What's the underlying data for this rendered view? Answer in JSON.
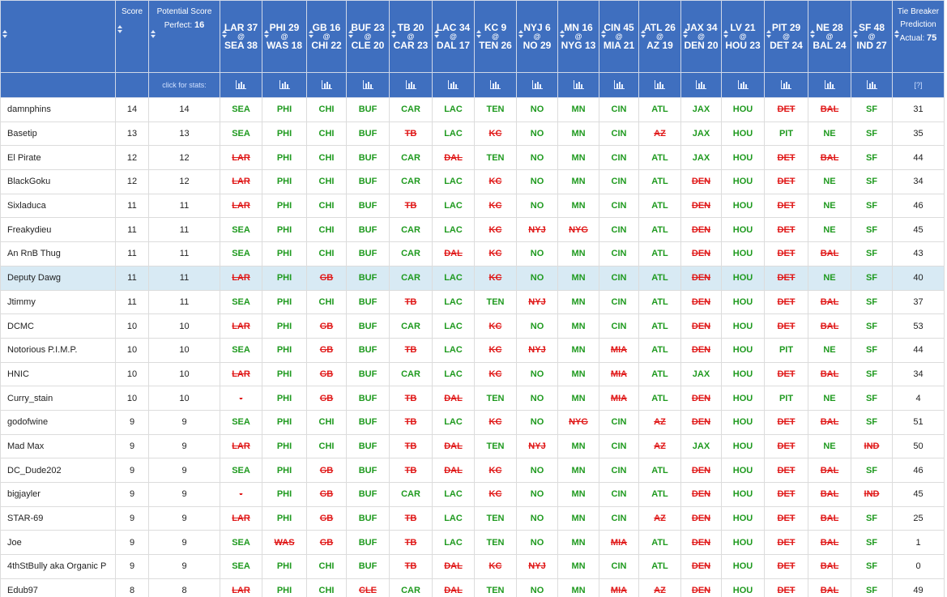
{
  "table": {
    "header": {
      "score": "Score",
      "potential": {
        "label": "Potential Score",
        "perfect_label": "Perfect:",
        "perfect": 16
      },
      "tiebreaker": {
        "label": "Tie Breaker Prediction",
        "actual_label": "Actual:",
        "actual": 75
      },
      "stats_hint": "click for stats:",
      "help": "[?]"
    },
    "games": [
      {
        "away": "LAR",
        "away_score": 37,
        "home": "SEA",
        "home_score": 38
      },
      {
        "away": "PHI",
        "away_score": 29,
        "home": "WAS",
        "home_score": 18
      },
      {
        "away": "GB",
        "away_score": 16,
        "home": "CHI",
        "home_score": 22
      },
      {
        "away": "BUF",
        "away_score": 23,
        "home": "CLE",
        "home_score": 20
      },
      {
        "away": "TB",
        "away_score": 20,
        "home": "CAR",
        "home_score": 23
      },
      {
        "away": "LAC",
        "away_score": 34,
        "home": "DAL",
        "home_score": 17
      },
      {
        "away": "KC",
        "away_score": 9,
        "home": "TEN",
        "home_score": 26
      },
      {
        "away": "NYJ",
        "away_score": 6,
        "home": "NO",
        "home_score": 29
      },
      {
        "away": "MN",
        "away_score": 16,
        "home": "NYG",
        "home_score": 13
      },
      {
        "away": "CIN",
        "away_score": 45,
        "home": "MIA",
        "home_score": 21
      },
      {
        "away": "ATL",
        "away_score": 26,
        "home": "AZ",
        "home_score": 19
      },
      {
        "away": "JAX",
        "away_score": 34,
        "home": "DEN",
        "home_score": 20
      },
      {
        "away": "LV",
        "away_score": 21,
        "home": "HOU",
        "home_score": 23
      },
      {
        "away": "PIT",
        "away_score": 29,
        "home": "DET",
        "home_score": 24
      },
      {
        "away": "NE",
        "away_score": 28,
        "home": "BAL",
        "home_score": 24
      },
      {
        "away": "SF",
        "away_score": 48,
        "home": "IND",
        "home_score": 27
      }
    ],
    "rows": [
      {
        "name": "damnphins",
        "score": 14,
        "potential": 14,
        "picks": [
          "SEA",
          "PHI",
          "CHI",
          "BUF",
          "CAR",
          "LAC",
          "TEN",
          "NO",
          "MN",
          "CIN",
          "ATL",
          "JAX",
          "HOU",
          "DET",
          "BAL",
          "SF"
        ],
        "tiebreaker": 31
      },
      {
        "name": "Basetip",
        "score": 13,
        "potential": 13,
        "picks": [
          "SEA",
          "PHI",
          "CHI",
          "BUF",
          "TB",
          "LAC",
          "KC",
          "NO",
          "MN",
          "CIN",
          "AZ",
          "JAX",
          "HOU",
          "PIT",
          "NE",
          "SF"
        ],
        "tiebreaker": 35
      },
      {
        "name": "El Pirate",
        "score": 12,
        "potential": 12,
        "picks": [
          "LAR",
          "PHI",
          "CHI",
          "BUF",
          "CAR",
          "DAL",
          "TEN",
          "NO",
          "MN",
          "CIN",
          "ATL",
          "JAX",
          "HOU",
          "DET",
          "BAL",
          "SF"
        ],
        "tiebreaker": 44
      },
      {
        "name": "BlackGoku",
        "score": 12,
        "potential": 12,
        "picks": [
          "LAR",
          "PHI",
          "CHI",
          "BUF",
          "CAR",
          "LAC",
          "KC",
          "NO",
          "MN",
          "CIN",
          "ATL",
          "DEN",
          "HOU",
          "DET",
          "NE",
          "SF"
        ],
        "tiebreaker": 34
      },
      {
        "name": "Sixladuca",
        "score": 11,
        "potential": 11,
        "picks": [
          "LAR",
          "PHI",
          "CHI",
          "BUF",
          "TB",
          "LAC",
          "KC",
          "NO",
          "MN",
          "CIN",
          "ATL",
          "DEN",
          "HOU",
          "DET",
          "NE",
          "SF"
        ],
        "tiebreaker": 46
      },
      {
        "name": "Freakydieu",
        "score": 11,
        "potential": 11,
        "picks": [
          "SEA",
          "PHI",
          "CHI",
          "BUF",
          "CAR",
          "LAC",
          "KC",
          "NYJ",
          "NYG",
          "CIN",
          "ATL",
          "DEN",
          "HOU",
          "DET",
          "NE",
          "SF"
        ],
        "tiebreaker": 45
      },
      {
        "name": "An RnB Thug",
        "score": 11,
        "potential": 11,
        "picks": [
          "SEA",
          "PHI",
          "CHI",
          "BUF",
          "CAR",
          "DAL",
          "KC",
          "NO",
          "MN",
          "CIN",
          "ATL",
          "DEN",
          "HOU",
          "DET",
          "BAL",
          "SF"
        ],
        "tiebreaker": 43
      },
      {
        "name": "Deputy Dawg",
        "score": 11,
        "potential": 11,
        "picks": [
          "LAR",
          "PHI",
          "GB",
          "BUF",
          "CAR",
          "LAC",
          "KC",
          "NO",
          "MN",
          "CIN",
          "ATL",
          "DEN",
          "HOU",
          "DET",
          "NE",
          "SF"
        ],
        "tiebreaker": 40,
        "highlighted": true
      },
      {
        "name": "Jtimmy",
        "score": 11,
        "potential": 11,
        "picks": [
          "SEA",
          "PHI",
          "CHI",
          "BUF",
          "TB",
          "LAC",
          "TEN",
          "NYJ",
          "MN",
          "CIN",
          "ATL",
          "DEN",
          "HOU",
          "DET",
          "BAL",
          "SF"
        ],
        "tiebreaker": 37
      },
      {
        "name": "DCMC",
        "score": 10,
        "potential": 10,
        "picks": [
          "LAR",
          "PHI",
          "GB",
          "BUF",
          "CAR",
          "LAC",
          "KC",
          "NO",
          "MN",
          "CIN",
          "ATL",
          "DEN",
          "HOU",
          "DET",
          "BAL",
          "SF"
        ],
        "tiebreaker": 53
      },
      {
        "name": "Notorious P.I.M.P.",
        "score": 10,
        "potential": 10,
        "picks": [
          "SEA",
          "PHI",
          "GB",
          "BUF",
          "TB",
          "LAC",
          "KC",
          "NYJ",
          "MN",
          "MIA",
          "ATL",
          "DEN",
          "HOU",
          "PIT",
          "NE",
          "SF"
        ],
        "tiebreaker": 44
      },
      {
        "name": "HNIC",
        "score": 10,
        "potential": 10,
        "picks": [
          "LAR",
          "PHI",
          "GB",
          "BUF",
          "CAR",
          "LAC",
          "KC",
          "NO",
          "MN",
          "MIA",
          "ATL",
          "JAX",
          "HOU",
          "DET",
          "BAL",
          "SF"
        ],
        "tiebreaker": 34
      },
      {
        "name": "Curry_stain",
        "score": 10,
        "potential": 10,
        "picks": [
          "-",
          "PHI",
          "GB",
          "BUF",
          "TB",
          "DAL",
          "TEN",
          "NO",
          "MN",
          "MIA",
          "ATL",
          "DEN",
          "HOU",
          "PIT",
          "NE",
          "SF"
        ],
        "tiebreaker": 4
      },
      {
        "name": "godofwine",
        "score": 9,
        "potential": 9,
        "picks": [
          "SEA",
          "PHI",
          "CHI",
          "BUF",
          "TB",
          "LAC",
          "KC",
          "NO",
          "NYG",
          "CIN",
          "AZ",
          "DEN",
          "HOU",
          "DET",
          "BAL",
          "SF"
        ],
        "tiebreaker": 51
      },
      {
        "name": "Mad Max",
        "score": 9,
        "potential": 9,
        "picks": [
          "LAR",
          "PHI",
          "CHI",
          "BUF",
          "TB",
          "DAL",
          "TEN",
          "NYJ",
          "MN",
          "CIN",
          "AZ",
          "JAX",
          "HOU",
          "DET",
          "NE",
          "IND"
        ],
        "tiebreaker": 50
      },
      {
        "name": "DC_Dude202",
        "score": 9,
        "potential": 9,
        "picks": [
          "SEA",
          "PHI",
          "GB",
          "BUF",
          "TB",
          "DAL",
          "KC",
          "NO",
          "MN",
          "CIN",
          "ATL",
          "DEN",
          "HOU",
          "DET",
          "BAL",
          "SF"
        ],
        "tiebreaker": 46
      },
      {
        "name": "bigjayler",
        "score": 9,
        "potential": 9,
        "picks": [
          "-",
          "PHI",
          "GB",
          "BUF",
          "CAR",
          "LAC",
          "KC",
          "NO",
          "MN",
          "CIN",
          "ATL",
          "DEN",
          "HOU",
          "DET",
          "BAL",
          "IND"
        ],
        "tiebreaker": 45
      },
      {
        "name": "STAR-69",
        "score": 9,
        "potential": 9,
        "picks": [
          "LAR",
          "PHI",
          "GB",
          "BUF",
          "TB",
          "LAC",
          "TEN",
          "NO",
          "MN",
          "CIN",
          "AZ",
          "DEN",
          "HOU",
          "DET",
          "BAL",
          "SF"
        ],
        "tiebreaker": 25
      },
      {
        "name": "Joe",
        "score": 9,
        "potential": 9,
        "picks": [
          "SEA",
          "WAS",
          "GB",
          "BUF",
          "TB",
          "LAC",
          "TEN",
          "NO",
          "MN",
          "MIA",
          "ATL",
          "DEN",
          "HOU",
          "DET",
          "BAL",
          "SF"
        ],
        "tiebreaker": 1
      },
      {
        "name": "4thStBully aka Organic P",
        "score": 9,
        "potential": 9,
        "picks": [
          "SEA",
          "PHI",
          "CHI",
          "BUF",
          "TB",
          "DAL",
          "KC",
          "NYJ",
          "MN",
          "CIN",
          "ATL",
          "DEN",
          "HOU",
          "DET",
          "BAL",
          "SF"
        ],
        "tiebreaker": 0
      },
      {
        "name": "Edub97",
        "score": 8,
        "potential": 8,
        "picks": [
          "LAR",
          "PHI",
          "CHI",
          "CLE",
          "CAR",
          "DAL",
          "TEN",
          "NO",
          "MN",
          "MIA",
          "AZ",
          "DEN",
          "HOU",
          "DET",
          "BAL",
          "SF"
        ],
        "tiebreaker": 49
      }
    ]
  }
}
